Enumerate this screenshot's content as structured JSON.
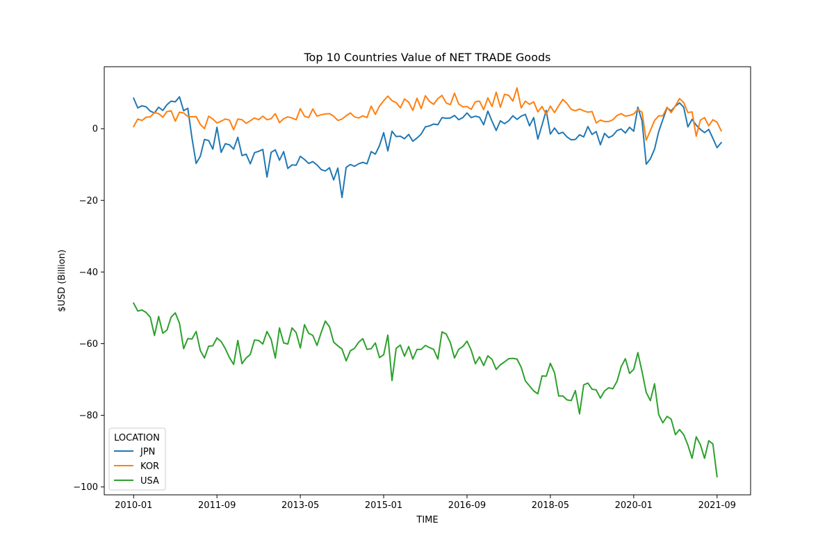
{
  "chart_data": {
    "type": "line",
    "title": "Top 10 Countries Value of NET TRADE Goods",
    "xlabel": "TIME",
    "ylabel": "$USD (Billion)",
    "ylim": [
      -102.2,
      17.3
    ],
    "yticks": [
      -100,
      -80,
      -60,
      -40,
      -20,
      0
    ],
    "xticks": [
      "2010-01",
      "2011-09",
      "2013-05",
      "2015-01",
      "2016-09",
      "2018-05",
      "2020-01",
      "2021-09"
    ],
    "grid": false,
    "legend": {
      "title": "LOCATION",
      "placement": "lower-left"
    },
    "x_start": "2010-01",
    "series": [
      {
        "name": "JPN",
        "color": "#1f77b4",
        "values": [
          8.5,
          5.8,
          6.4,
          6.1,
          4.9,
          4.4,
          6,
          5.1,
          6.7,
          7.7,
          7.5,
          8.9,
          5,
          5.7,
          -2.6,
          -9.7,
          -7.7,
          -3,
          -3.3,
          -5.7,
          0.4,
          -6.6,
          -4.2,
          -4.5,
          -5.7,
          -2.4,
          -7.5,
          -7.1,
          -9.8,
          -6.7,
          -6.3,
          -5.8,
          -13.5,
          -6.6,
          -5.9,
          -8.8,
          -6.4,
          -11.1,
          -10.1,
          -10.2,
          -7.7,
          -8.6,
          -9.7,
          -9.2,
          -10.1,
          -11.4,
          -11.8,
          -10.9,
          -14.3,
          -11,
          -19.2,
          -10.8,
          -10,
          -10.5,
          -9.8,
          -9.4,
          -9.8,
          -6.4,
          -7.1,
          -4.7,
          -1.1,
          -6.2,
          -0.7,
          -2.2,
          -2.1,
          -2.8,
          -1.6,
          -3.5,
          -2.6,
          -1.5,
          0.5,
          0.8,
          1.3,
          1.1,
          3.1,
          2.9,
          3,
          3.7,
          2.5,
          3.1,
          4.4,
          3.1,
          3.5,
          3.2,
          1.1,
          4.9,
          2.1,
          -0.5,
          2.2,
          1.4,
          2.2,
          3.6,
          2.6,
          3.5,
          4,
          0.8,
          3.1,
          -2.9,
          1,
          5.1,
          -1.5,
          0.2,
          -1.4,
          -1,
          -2.3,
          -3.1,
          -3,
          -1.7,
          -2.3,
          0.6,
          -1.6,
          -0.8,
          -4.5,
          -1.3,
          -2.5,
          -1.9,
          -0.5,
          -0.1,
          -1.2,
          0.4,
          -0.7,
          6,
          2.2,
          -9.9,
          -8.4,
          -5.7,
          -0.8,
          2.6,
          5.8,
          5,
          6.3,
          7.2,
          6,
          0.5,
          2.6,
          1,
          -0.2,
          -1.1,
          -0.2,
          -2.7,
          -5.3,
          -3.9
        ]
      },
      {
        "name": "KOR",
        "color": "#ff7f0e",
        "values": [
          0.6,
          2.7,
          2.3,
          3.2,
          3.3,
          4.5,
          4.2,
          3.2,
          4.8,
          5,
          2.1,
          4.6,
          4.4,
          3.4,
          3.3,
          3.4,
          1.2,
          0,
          3.5,
          2.7,
          1.6,
          2.1,
          2.7,
          2.4,
          -0.3,
          2.7,
          2.5,
          1.5,
          2.2,
          3,
          2.5,
          3.5,
          2.5,
          2.8,
          4.2,
          1.7,
          2.8,
          3.3,
          3,
          2.5,
          5.6,
          3.5,
          3.1,
          5.5,
          3.5,
          3.9,
          4.1,
          4.2,
          3.5,
          2.3,
          2.7,
          3.6,
          4.4,
          3.3,
          3,
          3.6,
          3.1,
          6.3,
          4,
          6.3,
          7.8,
          9.1,
          7.8,
          7.3,
          5.8,
          8.3,
          7.4,
          5.1,
          8.5,
          5.6,
          9.2,
          7.6,
          6.8,
          8.4,
          9.3,
          7.2,
          6.7,
          9.9,
          6.9,
          6.1,
          6.2,
          5.4,
          7.5,
          7.7,
          5.3,
          8.6,
          6.2,
          10.2,
          6,
          9.6,
          9.3,
          7.7,
          11.4,
          5.8,
          7.7,
          6.8,
          7.5,
          4.7,
          6.2,
          4,
          6.3,
          4.5,
          6.4,
          8.2,
          7,
          5.4,
          5,
          5.5,
          5,
          4.6,
          4.8,
          1.6,
          2.4,
          2,
          2,
          2.5,
          3.7,
          4.2,
          3.5,
          3.7,
          4.1,
          5.4,
          4.6,
          -3.2,
          -0.5,
          2.3,
          3.6,
          3.6,
          6,
          4.5,
          6.4,
          8.4,
          7.3,
          4.5,
          4.7,
          -2.1,
          2.4,
          3.1,
          0.8,
          2.5,
          1.8,
          -0.6
        ]
      },
      {
        "name": "USA",
        "color": "#2ca02c",
        "values": [
          -48.7,
          -50.9,
          -50.6,
          -51.3,
          -52.6,
          -57.7,
          -52.4,
          -57.1,
          -56.2,
          -52.6,
          -51.4,
          -54.3,
          -61.4,
          -58.6,
          -58.7,
          -56.6,
          -61.9,
          -64,
          -60.7,
          -60.6,
          -58.4,
          -59.4,
          -61.4,
          -63.9,
          -65.8,
          -59.1,
          -65.6,
          -64,
          -63,
          -59,
          -59.1,
          -60.1,
          -56.6,
          -58.8,
          -64,
          -55.6,
          -59.8,
          -60.1,
          -55.6,
          -56.9,
          -61.2,
          -54.7,
          -57.1,
          -57.7,
          -60.5,
          -56.9,
          -53.7,
          -55.3,
          -59.6,
          -60.6,
          -61.5,
          -64.8,
          -62,
          -61.3,
          -59.6,
          -58.6,
          -61.6,
          -61.4,
          -59.8,
          -63.9,
          -63.1,
          -57.6,
          -70.3,
          -61.3,
          -60.4,
          -63.5,
          -60.8,
          -64.3,
          -61.6,
          -61.6,
          -60.5,
          -61.1,
          -61.6,
          -64.3,
          -56.7,
          -57.3,
          -59.7,
          -64,
          -61.6,
          -60.8,
          -59.3,
          -61.8,
          -65.6,
          -63.7,
          -66.1,
          -63.4,
          -64.4,
          -67.2,
          -65.9,
          -65.1,
          -64.2,
          -64.1,
          -64.3,
          -66.6,
          -70.4,
          -71.8,
          -73.2,
          -74,
          -69,
          -69.1,
          -65.5,
          -68.1,
          -74.6,
          -74.6,
          -75.7,
          -75.9,
          -73.1,
          -79.6,
          -71.5,
          -71,
          -72.7,
          -72.9,
          -75.2,
          -73.2,
          -72.3,
          -72.6,
          -70.5,
          -66.4,
          -64.2,
          -68.3,
          -67.2,
          -62.5,
          -67.8,
          -73.6,
          -75.9,
          -71.2,
          -79.8,
          -82.1,
          -80.3,
          -81.1,
          -85.4,
          -84,
          -85.4,
          -88.3,
          -92,
          -86,
          -88.2,
          -92,
          -87.1,
          -88,
          -97.1
        ]
      }
    ]
  }
}
